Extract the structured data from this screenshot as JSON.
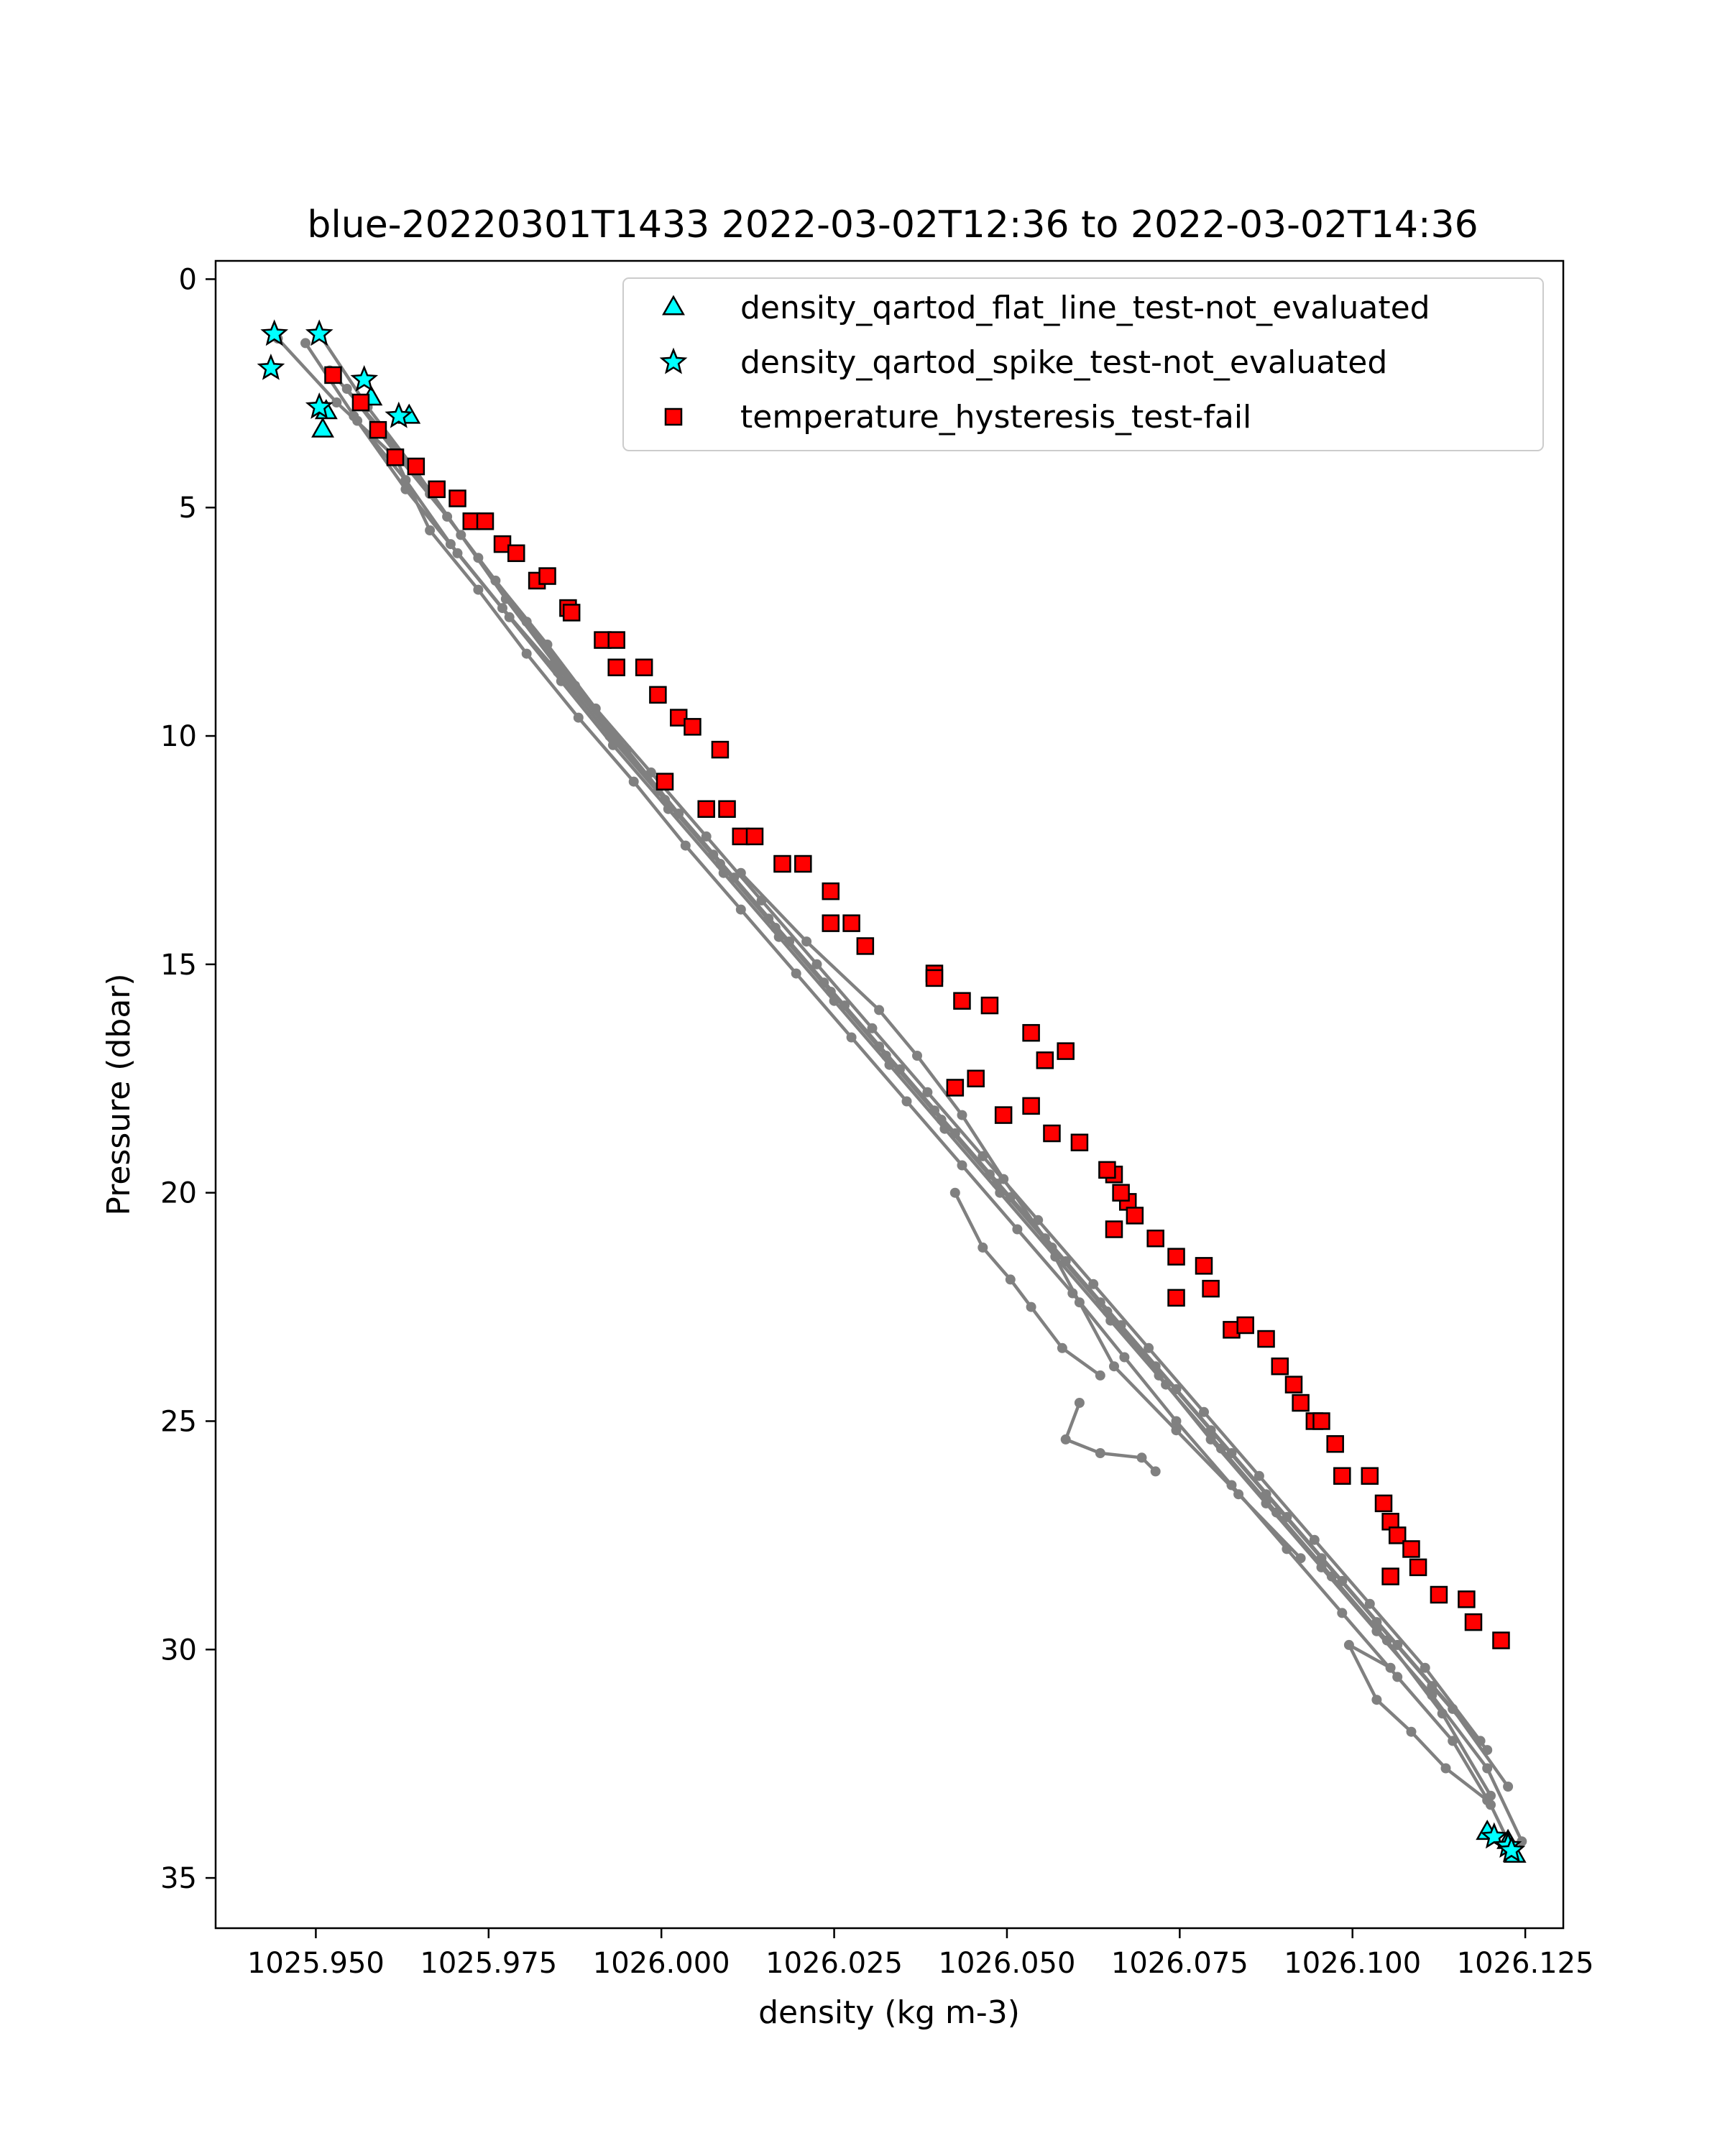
{
  "chart_data": {
    "type": "scatter",
    "title": "blue-20220301T1433 2022-03-02T12:36 to 2022-03-02T14:36",
    "xlabel": "density (kg m-3)",
    "ylabel": "Pressure (dbar)",
    "xlim": [
      1025.9355,
      1026.1305
    ],
    "ylim": [
      36.1,
      -0.4
    ],
    "y_inverted": true,
    "grid": false,
    "legend_position": "top-right",
    "x_ticks": [
      {
        "value": 1025.95,
        "label": "1025.950"
      },
      {
        "value": 1025.975,
        "label": "1025.975"
      },
      {
        "value": 1026.0,
        "label": "1026.000"
      },
      {
        "value": 1026.025,
        "label": "1026.025"
      },
      {
        "value": 1026.05,
        "label": "1026.050"
      },
      {
        "value": 1026.075,
        "label": "1026.075"
      },
      {
        "value": 1026.1,
        "label": "1026.100"
      },
      {
        "value": 1026.125,
        "label": "1026.125"
      }
    ],
    "y_ticks": [
      {
        "value": 0,
        "label": "0"
      },
      {
        "value": 5,
        "label": "5"
      },
      {
        "value": 10,
        "label": "10"
      },
      {
        "value": 15,
        "label": "15"
      },
      {
        "value": 20,
        "label": "20"
      },
      {
        "value": 25,
        "label": "25"
      },
      {
        "value": 30,
        "label": "30"
      },
      {
        "value": 35,
        "label": "35"
      }
    ],
    "profile_color": "#808080",
    "profiles": [
      {
        "x": [
          1025.9445,
          1025.953,
          1025.9615,
          1025.9665,
          1025.9735,
          1025.9805,
          1025.988,
          1025.996,
          1026.0035,
          1026.0115,
          1026.0195,
          1026.0275,
          1026.0355,
          1026.0435,
          1026.0515,
          1026.0595,
          1026.067,
          1026.0745,
          1026.0825,
          1026.0905,
          1026.0985,
          1026.1065,
          1026.1145,
          1026.12,
          1026.1235
        ],
        "y": [
          1.3,
          2.7,
          3.9,
          5.5,
          6.8,
          8.2,
          9.6,
          11.0,
          12.4,
          13.8,
          15.2,
          16.6,
          18.0,
          19.4,
          20.8,
          22.2,
          23.6,
          25.0,
          26.4,
          27.8,
          29.2,
          30.6,
          32.0,
          33.4,
          34.5
        ]
      },
      {
        "x": [
          1025.9485,
          1025.956,
          1025.963,
          1025.9695,
          1025.977,
          1025.985,
          1025.9925,
          1026.0005,
          1026.0085,
          1026.0165,
          1026.0245,
          1026.0325,
          1026.0405,
          1026.0485,
          1026.0565,
          1026.0645,
          1026.072,
          1026.0795,
          1026.0875,
          1026.0955,
          1026.1035,
          1026.1115,
          1026.1195,
          1026.1245
        ],
        "y": [
          1.4,
          3.1,
          4.4,
          5.8,
          7.2,
          8.6,
          10.0,
          11.4,
          12.8,
          14.2,
          15.6,
          17.0,
          18.4,
          19.8,
          21.2,
          22.6,
          24.0,
          25.4,
          26.8,
          28.2,
          29.6,
          31.0,
          32.6,
          34.2
        ]
      },
      {
        "x": [
          1025.9505,
          1025.9575,
          1025.9645,
          1025.971,
          1025.9775,
          1025.9845,
          1025.992,
          1025.9995,
          1026.0075,
          1026.0155,
          1026.0235,
          1026.0315,
          1026.0395,
          1026.0475,
          1026.0555,
          1026.0635,
          1026.0715,
          1026.0795,
          1026.0875,
          1026.0955,
          1026.1035,
          1026.1115,
          1026.1195
        ],
        "y": [
          1.2,
          2.8,
          4.2,
          5.6,
          7.0,
          8.4,
          9.8,
          11.2,
          12.6,
          14.0,
          15.4,
          16.8,
          18.2,
          19.6,
          21.0,
          22.4,
          23.8,
          25.2,
          26.6,
          28.0,
          29.4,
          30.8,
          32.2
        ]
      },
      {
        "x": [
          1025.952,
          1025.9595,
          1025.9665,
          1025.9735,
          1025.9805,
          1025.9875,
          1025.995,
          1026.0025,
          1026.0105,
          1026.0185,
          1026.0265,
          1026.0345,
          1026.0425,
          1026.0505,
          1026.0585,
          1026.0665,
          1026.0745,
          1026.0825,
          1026.0905,
          1026.0985,
          1026.1065,
          1026.1145,
          1026.1225
        ],
        "y": [
          2.0,
          3.3,
          4.7,
          6.1,
          7.5,
          8.9,
          10.3,
          11.7,
          13.1,
          14.5,
          15.9,
          17.3,
          18.7,
          20.1,
          21.5,
          22.9,
          24.3,
          25.7,
          27.1,
          28.5,
          29.9,
          31.3,
          33.0
        ]
      },
      {
        "x": [
          1025.9545,
          1025.962,
          1025.969,
          1025.976,
          1025.9835,
          1025.9905,
          1025.9985,
          1026.0065,
          1026.0145,
          1026.0225,
          1026.0305,
          1026.0385,
          1026.0465,
          1026.0545,
          1026.0625,
          1026.0705,
          1026.0785,
          1026.0865,
          1026.0945,
          1026.1025,
          1026.1105,
          1026.1185
        ],
        "y": [
          2.4,
          3.9,
          5.2,
          6.6,
          8.0,
          9.4,
          10.8,
          12.2,
          13.6,
          15.0,
          16.4,
          17.8,
          19.2,
          20.6,
          22.0,
          23.4,
          24.8,
          26.2,
          27.6,
          29.0,
          30.4,
          32.0
        ]
      },
      {
        "x": [
          1025.9555,
          1025.963,
          1025.9705,
          1025.978,
          1025.9855,
          1025.993,
          1026.001,
          1026.009,
          1026.017,
          1026.025,
          1026.033,
          1026.041,
          1026.049,
          1026.057,
          1026.065,
          1026.073,
          1026.081,
          1026.089,
          1026.097,
          1026.105,
          1026.113,
          1026.12
        ],
        "y": [
          3.0,
          4.6,
          6.0,
          7.4,
          8.8,
          10.2,
          11.6,
          13.0,
          14.4,
          15.8,
          17.2,
          18.6,
          20.0,
          21.4,
          22.8,
          24.2,
          25.6,
          27.0,
          28.4,
          29.8,
          31.4,
          33.2
        ]
      },
      {
        "x": [
          1026.0115,
          1026.021,
          1026.0315,
          1026.037,
          1026.0435,
          1026.0495,
          1026.0555,
          1026.0605,
          1026.0655,
          1026.0745,
          1026.0835,
          1026.0925
        ],
        "y": [
          13.0,
          14.5,
          16.0,
          17.0,
          18.3,
          19.7,
          21.0,
          22.4,
          23.8,
          25.2,
          26.6,
          28.0
        ]
      },
      {
        "x": [
          1026.0425,
          1026.0465,
          1026.0505,
          1026.0535,
          1026.058,
          1026.0635
        ],
        "y": [
          20.0,
          21.2,
          21.9,
          22.5,
          23.4,
          24.0
        ]
      },
      {
        "x": [
          1026.0605,
          1026.0585,
          1026.0635,
          1026.0695,
          1026.0715
        ],
        "y": [
          24.6,
          25.4,
          25.7,
          25.8,
          26.1
        ]
      },
      {
        "x": [
          1026.1055,
          1026.0995,
          1026.1035,
          1026.1085,
          1026.1135,
          1026.1195
        ],
        "y": [
          30.4,
          29.9,
          31.1,
          31.8,
          32.6,
          33.3
        ]
      }
    ],
    "series": [
      {
        "name": "density_qartod_flat_line_test-not_evaluated",
        "marker": "triangle",
        "color": "#00ffff",
        "x": [
          1025.9515,
          1025.951,
          1025.958,
          1025.9635,
          1026.1195,
          1026.1225,
          1026.1235
        ],
        "y": [
          2.9,
          3.3,
          2.6,
          3.0,
          34.0,
          34.2,
          34.5
        ]
      },
      {
        "name": "density_qartod_spike_test-not_evaluated",
        "marker": "star",
        "color": "#00ffff",
        "x": [
          1025.944,
          1025.9505,
          1025.9435,
          1025.957,
          1025.962,
          1025.9505,
          1026.1205,
          1026.1225,
          1026.123
        ],
        "y": [
          1.2,
          1.2,
          1.95,
          2.2,
          3.0,
          2.8,
          34.1,
          34.3,
          34.4
        ]
      },
      {
        "name": "temperature_hysteresis_test-fail",
        "marker": "square",
        "color": "#ff0000",
        "x": [
          1025.9525,
          1025.9565,
          1025.959,
          1025.9615,
          1025.9645,
          1025.9675,
          1025.9705,
          1025.9725,
          1025.9745,
          1025.977,
          1025.979,
          1025.982,
          1025.9835,
          1025.9865,
          1025.987,
          1025.9915,
          1025.9935,
          1025.9935,
          1025.9975,
          1025.9995,
          1026.0025,
          1026.0045,
          1026.0085,
          1026.0005,
          1026.0065,
          1026.0095,
          1026.0115,
          1026.0135,
          1026.0175,
          1026.0205,
          1026.0245,
          1026.0245,
          1026.0275,
          1026.0295,
          1026.0395,
          1026.0395,
          1026.0435,
          1026.0475,
          1026.0535,
          1026.0555,
          1026.0585,
          1026.0425,
          1026.0455,
          1026.0495,
          1026.0535,
          1026.0565,
          1026.0605,
          1026.0655,
          1026.0675,
          1026.0645,
          1026.0665,
          1026.0655,
          1026.0685,
          1026.0715,
          1026.0745,
          1026.0745,
          1026.0785,
          1026.0795,
          1026.0825,
          1026.0845,
          1026.0875,
          1026.0895,
          1026.0915,
          1026.0925,
          1026.0945,
          1026.0955,
          1026.0975,
          1026.0985,
          1026.1025,
          1026.1045,
          1026.1055,
          1026.1065,
          1026.1085,
          1026.1095,
          1026.1055,
          1026.1125,
          1026.1165,
          1026.1175,
          1026.1215
        ],
        "y": [
          2.1,
          2.7,
          3.3,
          3.9,
          4.1,
          4.6,
          4.8,
          5.3,
          5.3,
          5.8,
          6.0,
          6.6,
          6.5,
          7.2,
          7.3,
          7.9,
          7.9,
          8.5,
          8.5,
          9.1,
          9.6,
          9.8,
          10.3,
          11.0,
          11.6,
          11.6,
          12.2,
          12.2,
          12.8,
          12.8,
          13.4,
          14.1,
          14.1,
          14.6,
          15.2,
          15.3,
          15.8,
          15.9,
          16.5,
          17.1,
          16.9,
          17.7,
          17.5,
          18.3,
          18.1,
          18.7,
          18.9,
          19.6,
          20.2,
          19.5,
          20.0,
          20.8,
          20.5,
          21.0,
          21.4,
          22.3,
          21.6,
          22.1,
          23.0,
          22.9,
          23.2,
          23.8,
          24.2,
          24.6,
          25.0,
          25.0,
          25.5,
          26.2,
          26.2,
          26.8,
          27.2,
          27.5,
          27.8,
          28.2,
          28.4,
          28.8,
          28.9,
          29.4,
          29.8
        ]
      }
    ]
  },
  "legend": {
    "items": [
      {
        "label": "density_qartod_flat_line_test-not_evaluated",
        "marker": "triangle",
        "color": "#00ffff"
      },
      {
        "label": "density_qartod_spike_test-not_evaluated",
        "marker": "star",
        "color": "#00ffff"
      },
      {
        "label": "temperature_hysteresis_test-fail",
        "marker": "square",
        "color": "#ff0000"
      }
    ]
  }
}
